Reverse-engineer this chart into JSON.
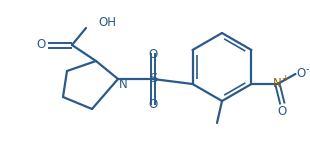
{
  "bg_color": "#ffffff",
  "line_color": "#2a5a8c",
  "line_width": 1.6,
  "text_color": "#2a5a8c",
  "no2_n_color": "#8b6500",
  "fig_width": 3.1,
  "fig_height": 1.55,
  "dpi": 100,
  "xlim": [
    0,
    310
  ],
  "ylim": [
    0,
    155
  ]
}
